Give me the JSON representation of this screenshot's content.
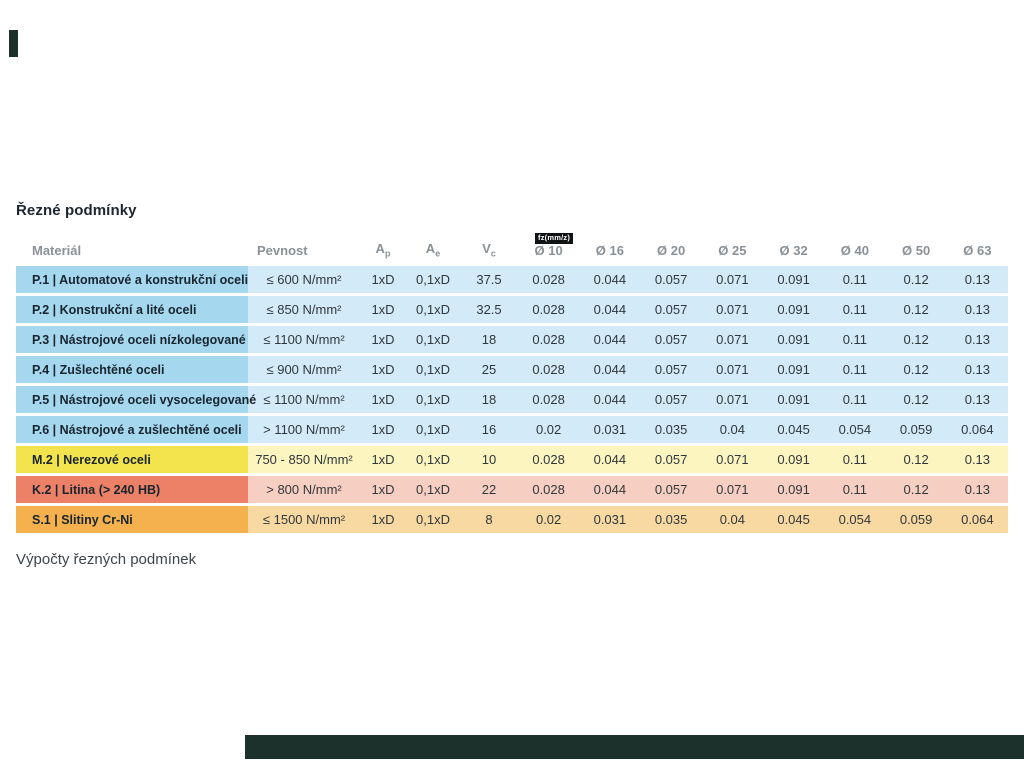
{
  "page": {
    "title_heading": "Řezné podmínky",
    "footer_link": "Výpočty řezných podmínek"
  },
  "decor": {
    "top_left_bar_color": "#1c312c",
    "bottom_bar_color": "#1c312c"
  },
  "table": {
    "fz_badge": "fz(mm/z)",
    "columns": [
      {
        "label": "Materiál"
      },
      {
        "label": "Pevnost"
      },
      {
        "label": "A",
        "sub": "p"
      },
      {
        "label": "A",
        "sub": "e"
      },
      {
        "label": "V",
        "sub": "c"
      },
      {
        "label": "Ø 10"
      },
      {
        "label": "Ø 16"
      },
      {
        "label": "Ø 20"
      },
      {
        "label": "Ø 25"
      },
      {
        "label": "Ø 32"
      },
      {
        "label": "Ø 40"
      },
      {
        "label": "Ø 50"
      },
      {
        "label": "Ø 63"
      }
    ],
    "themes": {
      "blue": {
        "head": "#a5d8ef",
        "body": "#d3ebf8"
      },
      "yellow": {
        "head": "#f3e44d",
        "body": "#fcf5c0"
      },
      "salmon": {
        "head": "#ec8168",
        "body": "#f7cfc2"
      },
      "orange": {
        "head": "#f4b14e",
        "body": "#f7d9a1"
      }
    },
    "rows": [
      {
        "material": "P.1 | Automatové a konstrukční oceli",
        "pevnost": "≤ 600 N/mm²",
        "ap": "1xD",
        "ae": "0,1xD",
        "vc": "37.5",
        "theme": "blue",
        "fz": [
          "0.028",
          "0.044",
          "0.057",
          "0.071",
          "0.091",
          "0.11",
          "0.12",
          "0.13"
        ]
      },
      {
        "material": "P.2 | Konstrukční a lité oceli",
        "pevnost": "≤ 850 N/mm²",
        "ap": "1xD",
        "ae": "0,1xD",
        "vc": "32.5",
        "theme": "blue",
        "fz": [
          "0.028",
          "0.044",
          "0.057",
          "0.071",
          "0.091",
          "0.11",
          "0.12",
          "0.13"
        ]
      },
      {
        "material": "P.3 | Nástrojové oceli nízkolegované",
        "pevnost": "≤ 1100 N/mm²",
        "ap": "1xD",
        "ae": "0,1xD",
        "vc": "18",
        "theme": "blue",
        "fz": [
          "0.028",
          "0.044",
          "0.057",
          "0.071",
          "0.091",
          "0.11",
          "0.12",
          "0.13"
        ]
      },
      {
        "material": "P.4 | Zušlechtěné oceli",
        "pevnost": "≤ 900 N/mm²",
        "ap": "1xD",
        "ae": "0,1xD",
        "vc": "25",
        "theme": "blue",
        "fz": [
          "0.028",
          "0.044",
          "0.057",
          "0.071",
          "0.091",
          "0.11",
          "0.12",
          "0.13"
        ]
      },
      {
        "material": "P.5 | Nástrojové oceli vysocelegované",
        "pevnost": "≤ 1100 N/mm²",
        "ap": "1xD",
        "ae": "0,1xD",
        "vc": "18",
        "theme": "blue",
        "fz": [
          "0.028",
          "0.044",
          "0.057",
          "0.071",
          "0.091",
          "0.11",
          "0.12",
          "0.13"
        ]
      },
      {
        "material": "P.6 | Nástrojové a zušlechtěné oceli",
        "pevnost": "> 1100 N/mm²",
        "ap": "1xD",
        "ae": "0,1xD",
        "vc": "16",
        "theme": "blue",
        "fz": [
          "0.02",
          "0.031",
          "0.035",
          "0.04",
          "0.045",
          "0.054",
          "0.059",
          "0.064"
        ]
      },
      {
        "material": "M.2 | Nerezové oceli",
        "pevnost": "750 - 850 N/mm²",
        "ap": "1xD",
        "ae": "0,1xD",
        "vc": "10",
        "theme": "yellow",
        "fz": [
          "0.028",
          "0.044",
          "0.057",
          "0.071",
          "0.091",
          "0.11",
          "0.12",
          "0.13"
        ]
      },
      {
        "material": "K.2 | Litina (> 240 HB)",
        "pevnost": "> 800 N/mm²",
        "ap": "1xD",
        "ae": "0,1xD",
        "vc": "22",
        "theme": "salmon",
        "fz": [
          "0.028",
          "0.044",
          "0.057",
          "0.071",
          "0.091",
          "0.11",
          "0.12",
          "0.13"
        ]
      },
      {
        "material": "S.1 | Slitiny Cr-Ni",
        "pevnost": "≤ 1500 N/mm²",
        "ap": "1xD",
        "ae": "0,1xD",
        "vc": "8",
        "theme": "orange",
        "fz": [
          "0.02",
          "0.031",
          "0.035",
          "0.04",
          "0.045",
          "0.054",
          "0.059",
          "0.064"
        ]
      }
    ]
  }
}
